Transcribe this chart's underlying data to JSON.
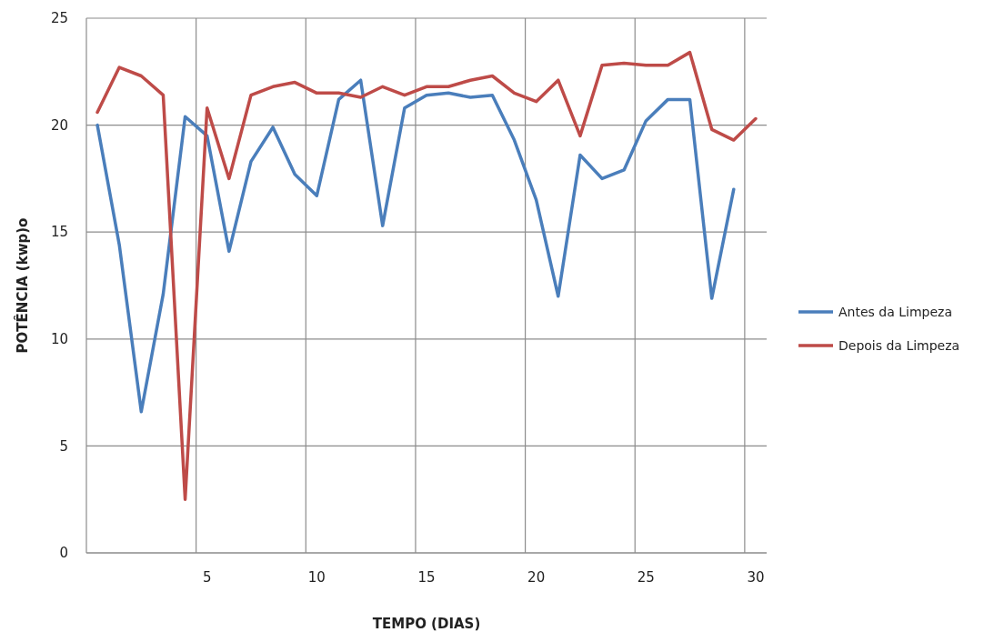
{
  "chart_data": {
    "type": "line",
    "xlabel": "TEMPO (DIAS)",
    "ylabel": "POTÊNCIA (kwp)o",
    "categories": [
      null,
      null,
      null,
      null,
      null,
      "5",
      null,
      null,
      null,
      null,
      "10",
      null,
      null,
      null,
      null,
      "15",
      null,
      null,
      null,
      null,
      "20",
      null,
      null,
      null,
      null,
      "25",
      null,
      null,
      null,
      null,
      "30"
    ],
    "series": [
      {
        "name": "Antes da Limpeza",
        "color": "#4a7ebb",
        "values": [
          20.0,
          14.4,
          6.6,
          12.1,
          20.4,
          19.5,
          14.1,
          18.3,
          19.9,
          17.7,
          16.7,
          21.2,
          22.1,
          15.3,
          20.8,
          21.4,
          21.5,
          21.3,
          21.4,
          19.3,
          16.5,
          12.0,
          18.6,
          17.5,
          17.9,
          20.2,
          21.2,
          21.2,
          11.9,
          17.0,
          null
        ]
      },
      {
        "name": "Depois da Limpeza",
        "color": "#be4b48",
        "values": [
          20.6,
          22.7,
          22.3,
          21.4,
          2.5,
          20.8,
          17.5,
          21.4,
          21.8,
          22.0,
          21.5,
          21.5,
          21.3,
          21.8,
          21.4,
          21.8,
          21.8,
          22.1,
          22.3,
          21.5,
          21.1,
          22.1,
          19.5,
          22.8,
          22.9,
          22.8,
          22.8,
          23.4,
          19.8,
          19.3,
          20.3
        ]
      }
    ],
    "ylim": [
      0,
      25
    ],
    "yticks": [
      0,
      5,
      10,
      15,
      20,
      25
    ],
    "grid": true,
    "legend": "right",
    "line_style": "solid",
    "marker": "none"
  }
}
